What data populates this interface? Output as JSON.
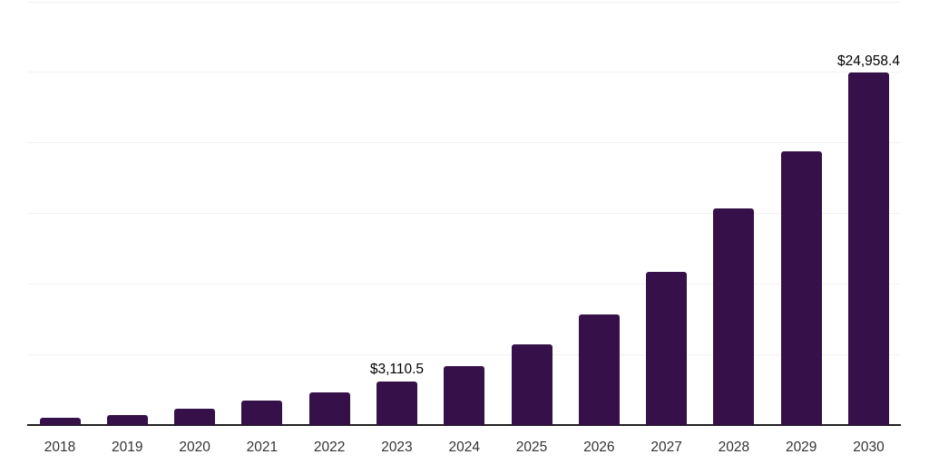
{
  "chart_data": {
    "type": "bar",
    "title": "",
    "xlabel": "",
    "ylabel": "",
    "categories": [
      "2018",
      "2019",
      "2020",
      "2021",
      "2022",
      "2023",
      "2024",
      "2025",
      "2026",
      "2027",
      "2028",
      "2029",
      "2030"
    ],
    "values": [
      510,
      710,
      1140,
      1715,
      2315,
      3110.5,
      4180,
      5720,
      7820,
      10870,
      15320,
      19360,
      24958.4
    ],
    "data_labels": [
      null,
      null,
      null,
      null,
      null,
      "$3,110.5",
      null,
      null,
      null,
      null,
      null,
      null,
      "$24,958.4"
    ],
    "ylim": [
      0,
      30000
    ],
    "gridline_interval": 5000,
    "grid_visible": true,
    "legend_visible": false,
    "y_tick_labels_visible": false,
    "colors": {
      "bar": "#351049",
      "gridline": "#f2f2f2",
      "axis": "#1f1f1f",
      "tick_label": "#333333",
      "data_label": "#000000",
      "background": "#ffffff"
    }
  }
}
